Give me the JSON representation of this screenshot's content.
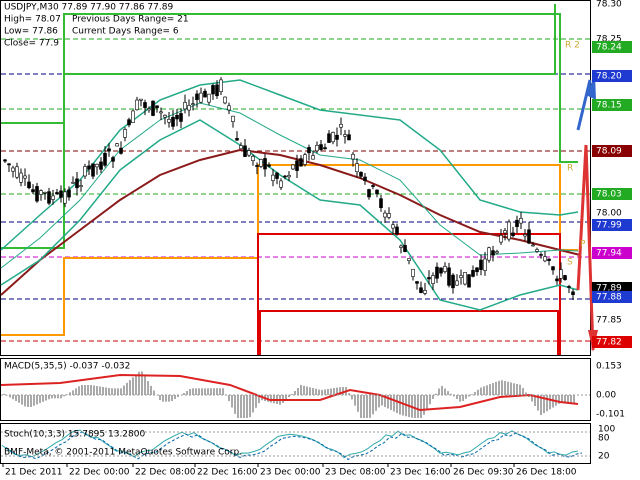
{
  "header": {
    "symbol_line": "USDJPY,M30  77.89 77.90 77.86 77.89",
    "high": "High= 78.07",
    "low": "Low= 77.86",
    "close": "Close= 77.9",
    "previous_range": "Previous Days Range= 21",
    "current_range": "Current Days Range= 6"
  },
  "price_axis": [
    "78.30",
    "78.25",
    "78.24",
    "78.20",
    "78.15",
    "78.09",
    "78.03",
    "78.00",
    "77.99",
    "77.94",
    "77.89",
    "77.88",
    "77.85",
    "77.82"
  ],
  "level_marks": [
    "R 2",
    "R",
    "P",
    "S"
  ],
  "macd": {
    "label": "MACD(5,35,5) -0.037 -0.032",
    "axis": [
      "0.153",
      "0.00",
      "-0.101"
    ]
  },
  "stoch": {
    "label": "Stoch(10,3,3) 15.7895 13.2800",
    "axis": [
      "100",
      "80",
      "20"
    ]
  },
  "copyright": "BMF-Meta, © 2001-2011 MetaQuotes Software Corp.",
  "time_axis": [
    "21 Dec 2011",
    "22 Dec 00:00",
    "22 Dec 08:00",
    "22 Dec 16:00",
    "23 Dec 00:00",
    "23 Dec 08:00",
    "23 Dec 16:00",
    "26 Dec 09:30",
    "26 Dec 18:00"
  ]
}
